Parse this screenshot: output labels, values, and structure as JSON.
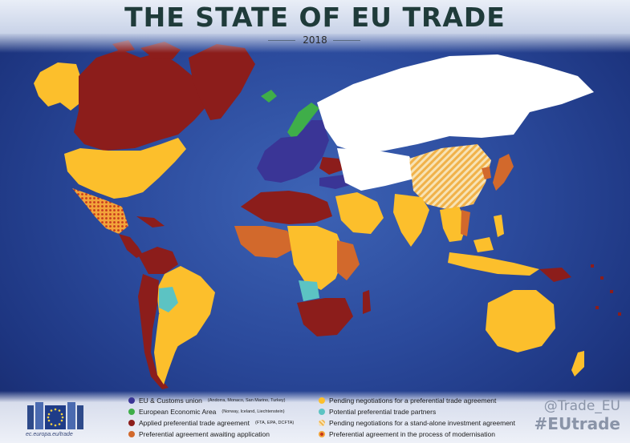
{
  "header": {
    "title": "THE STATE OF EU TRADE",
    "year": "2018"
  },
  "map": {
    "ocean_color": "#2b4a9c",
    "colors": {
      "eu_customs_union": "#3a3596",
      "eea": "#3fae49",
      "applied_pta": "#8c1d1b",
      "awaiting_application": "#d2692c",
      "pending_negotiations": "#fcbf2c",
      "potential_partners": "#5cc3c3",
      "investment_agreement": "#f5d9a0",
      "modernisation": "#c8451f",
      "no_agreement": "#ffffff"
    }
  },
  "legend": {
    "items": [
      {
        "label": "EU & Customs union",
        "sub": "(Andorra, Monaco, San Marino, Turkey)",
        "color": "#3a3596",
        "pattern": "solid"
      },
      {
        "label": "European Economic Area",
        "sub": "(Norway, Iceland, Liechtenstein)",
        "color": "#3fae49",
        "pattern": "solid"
      },
      {
        "label": "Applied preferential trade agreement",
        "sub": "(FTA, EPA, DCFTA)",
        "color": "#8c1d1b",
        "pattern": "solid"
      },
      {
        "label": "Preferential agreement awaiting application",
        "sub": "",
        "color": "#d2692c",
        "pattern": "solid"
      },
      {
        "label": "Pending negotiations for a preferential trade agreement",
        "sub": "",
        "color": "#fcbf2c",
        "pattern": "solid"
      },
      {
        "label": "Potential preferential trade partners",
        "sub": "",
        "color": "#5cc3c3",
        "pattern": "solid"
      },
      {
        "label": "Pending negotiations for a stand-alone investment agreement",
        "sub": "",
        "color": "#f5c46a",
        "pattern": "hatched"
      },
      {
        "label": "Preferential agreement in the process of modernisation",
        "sub": "",
        "color": "#d2451f",
        "pattern": "dotted"
      }
    ]
  },
  "social": {
    "handle": "@Trade_EU",
    "hashtag": "#EUtrade"
  },
  "branding": {
    "url": "ec.europa.eu/trade"
  }
}
